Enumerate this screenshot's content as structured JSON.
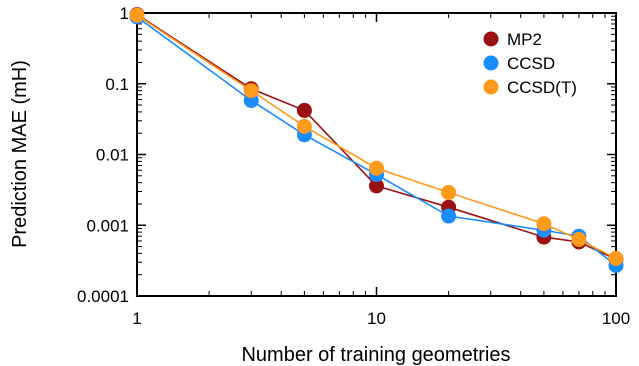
{
  "chart_data": {
    "type": "line",
    "title": "",
    "xlabel": "Number of training geometries",
    "ylabel": "Prediction MAE (mH)",
    "xscale": "log",
    "yscale": "log",
    "xlim": [
      1,
      100
    ],
    "ylim": [
      0.0001,
      1
    ],
    "x_ticks": [
      1,
      10,
      100
    ],
    "x_tick_labels": [
      "1",
      "10",
      "100"
    ],
    "y_ticks": [
      0.0001,
      0.001,
      0.01,
      0.1,
      1
    ],
    "y_tick_labels": [
      "0.0001",
      "0.001",
      "0.01",
      "0.1",
      "1"
    ],
    "grid": false,
    "legend_position": "top-right",
    "series": [
      {
        "name": "MP2",
        "color": "#9b1111",
        "x": [
          1,
          3,
          5,
          10,
          20,
          50,
          70,
          100
        ],
        "values": [
          0.95,
          0.085,
          0.042,
          0.0036,
          0.0018,
          0.00068,
          0.00058,
          0.00033
        ]
      },
      {
        "name": "CCSD",
        "color": "#1a8cff",
        "x": [
          1,
          3,
          5,
          10,
          20,
          50,
          70,
          100
        ],
        "values": [
          0.88,
          0.058,
          0.019,
          0.0052,
          0.00135,
          0.00085,
          0.0007,
          0.00027
        ]
      },
      {
        "name": "CCSD(T)",
        "color": "#ff9a1a",
        "x": [
          1,
          3,
          5,
          10,
          20,
          50,
          70,
          100
        ],
        "values": [
          0.93,
          0.08,
          0.025,
          0.0064,
          0.0029,
          0.00105,
          0.00063,
          0.00034
        ]
      }
    ]
  }
}
